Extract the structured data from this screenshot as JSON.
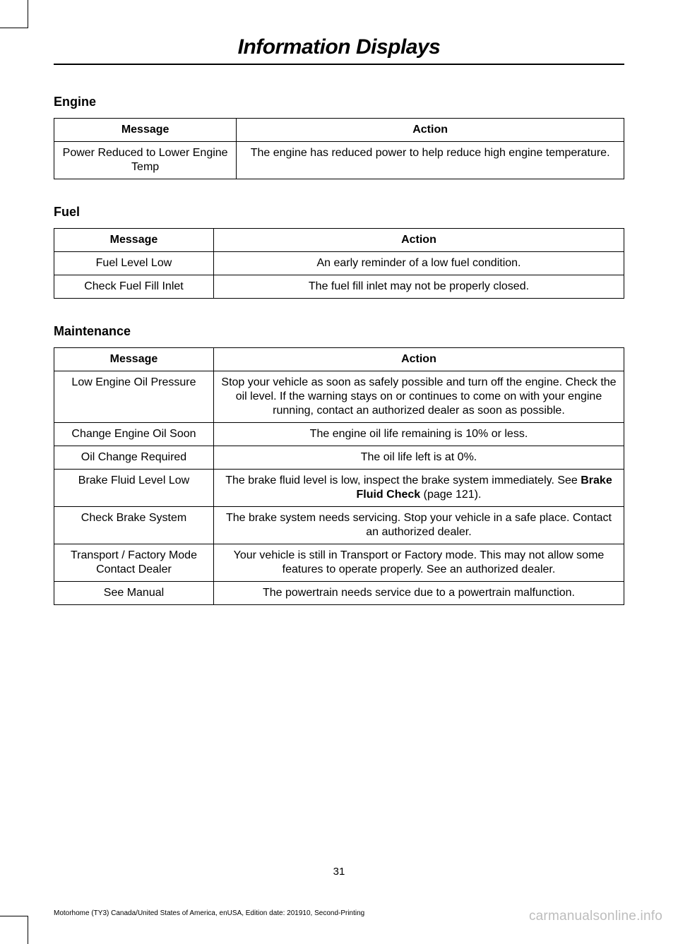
{
  "chapter_title": "Information Displays",
  "page_number": "31",
  "footer_left": "Motorhome (TY3) Canada/United States of America, enUSA, Edition date: 201910, Second-Printing",
  "watermark": "carmanualsonline.info",
  "sections": {
    "engine": {
      "heading": "Engine",
      "headers": {
        "message": "Message",
        "action": "Action"
      },
      "rows": [
        {
          "message": "Power Reduced to Lower Engine Temp",
          "action": "The engine has reduced power to help reduce high engine temperature."
        }
      ]
    },
    "fuel": {
      "heading": "Fuel",
      "headers": {
        "message": "Message",
        "action": "Action"
      },
      "rows": [
        {
          "message": "Fuel Level Low",
          "action": "An early reminder of a low fuel condition."
        },
        {
          "message": "Check Fuel Fill Inlet",
          "action": "The fuel fill inlet may not be properly closed."
        }
      ]
    },
    "maintenance": {
      "heading": "Maintenance",
      "headers": {
        "message": "Message",
        "action": "Action"
      },
      "rows": [
        {
          "message": "Low Engine Oil Pressure",
          "action": "Stop your vehicle as soon as safely possible and turn off the engine. Check the oil level. If the warning stays on or continues to come on with your engine running, contact an authorized dealer as soon as possible."
        },
        {
          "message": "Change Engine Oil Soon",
          "action": "The engine oil life remaining is 10% or less."
        },
        {
          "message": "Oil Change Required",
          "action": "The oil life left is at 0%."
        },
        {
          "message": "Brake Fluid Level Low",
          "action_pre": "The brake fluid level is low, inspect the brake system immediately.  See ",
          "action_bold": "Brake Fluid Check",
          "action_post": " (page 121)."
        },
        {
          "message": "Check Brake System",
          "action": "The brake system needs servicing.  Stop your vehicle in a safe place.  Contact an authorized dealer."
        },
        {
          "message": "Transport / Factory Mode Contact Dealer",
          "action": "Your vehicle is still in Transport or Factory mode. This may not allow some features to operate properly. See an authorized dealer."
        },
        {
          "message": "See Manual",
          "action": "The powertrain needs service due to a powertrain malfunction."
        }
      ]
    }
  }
}
